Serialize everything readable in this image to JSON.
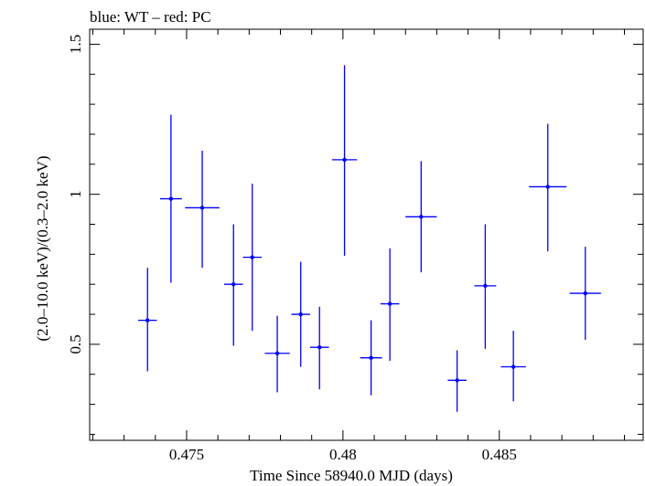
{
  "chart_data": {
    "type": "scatter",
    "title": "blue: WT – red: PC",
    "xlabel": "Time Since 58940.0 MJD (days)",
    "ylabel": "(2.0–10.0 keV)/(0.3–2.0 keV)",
    "xlim": [
      0.4719,
      0.4896
    ],
    "ylim": [
      0.18,
      1.55
    ],
    "xticks": [
      0.475,
      0.48,
      0.485
    ],
    "xtick_labels": [
      "0.475",
      "0.48",
      "0.485"
    ],
    "yticks": [
      0.5,
      1.0,
      1.5
    ],
    "ytick_labels": [
      "0.5",
      "1",
      "1.5"
    ],
    "grid": false,
    "series": [
      {
        "color": "#0000ff",
        "x": [
          0.47375,
          0.4745,
          0.4755,
          0.4765,
          0.4771,
          0.4779,
          0.47865,
          0.47925,
          0.48005,
          0.4809,
          0.4815,
          0.4825,
          0.48365,
          0.48455,
          0.48545,
          0.48655,
          0.48775
        ],
        "xerr": [
          0.0003,
          0.00035,
          0.00055,
          0.0003,
          0.0003,
          0.0004,
          0.0003,
          0.0003,
          0.0004,
          0.00035,
          0.0003,
          0.0005,
          0.0003,
          0.00035,
          0.0004,
          0.0006,
          0.0005
        ],
        "y": [
          0.58,
          0.985,
          0.955,
          0.7,
          0.79,
          0.47,
          0.6,
          0.49,
          1.115,
          0.455,
          0.635,
          0.925,
          0.38,
          0.695,
          0.425,
          1.025,
          0.67
        ],
        "ylo": [
          0.41,
          0.705,
          0.755,
          0.495,
          0.545,
          0.34,
          0.425,
          0.35,
          0.795,
          0.33,
          0.445,
          0.74,
          0.275,
          0.485,
          0.31,
          0.81,
          0.515
        ],
        "yhi": [
          0.755,
          1.265,
          1.145,
          0.9,
          1.035,
          0.595,
          0.775,
          0.625,
          1.43,
          0.58,
          0.82,
          1.11,
          0.48,
          0.9,
          0.545,
          1.235,
          0.825
        ]
      }
    ]
  }
}
